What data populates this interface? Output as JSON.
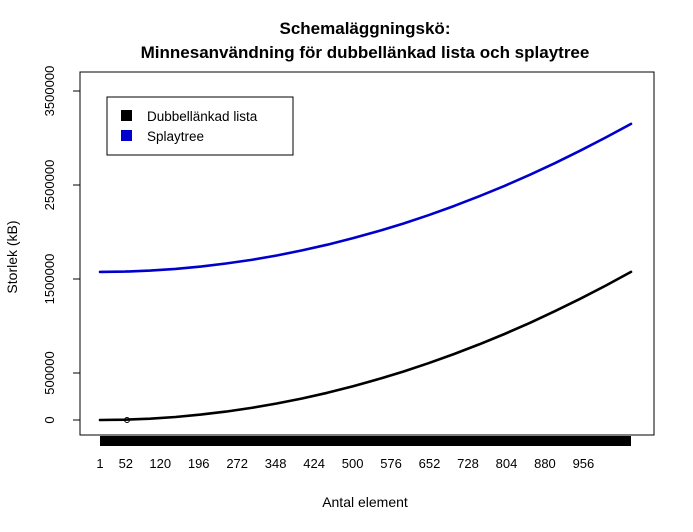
{
  "chart_data": {
    "type": "line",
    "title": "Schemaläggningskö:",
    "subtitle": "Minnesanvändning för dubbellänkad lista och splaytree",
    "xlabel": "Antal element",
    "ylabel": "Storlek (kB)",
    "x_ticks": [
      "1",
      "52",
      "120",
      "196",
      "272",
      "348",
      "424",
      "500",
      "576",
      "652",
      "728",
      "804",
      "880",
      "956"
    ],
    "y_ticks": [
      "0",
      "500000",
      "1500000",
      "2500000",
      "3500000"
    ],
    "xlim": [
      1,
      1050
    ],
    "ylim": [
      0,
      3500000
    ],
    "grid": false,
    "legend_position": "top-left",
    "series": [
      {
        "name": "Dubbellänkad lista",
        "color": "#000000",
        "x": [
          1,
          50,
          100,
          150,
          200,
          250,
          300,
          350,
          400,
          450,
          500,
          550,
          600,
          650,
          700,
          750,
          800,
          850,
          900,
          950,
          1000,
          1050
        ],
        "y": [
          0,
          3500,
          14300,
          32200,
          57200,
          89400,
          128700,
          175200,
          228800,
          289600,
          357500,
          432600,
          514800,
          604200,
          700700,
          804400,
          915200,
          1033200,
          1158300,
          1290600,
          1430000,
          1575000
        ]
      },
      {
        "name": "Splaytree",
        "color": "#0000cc",
        "x": [
          1,
          50,
          100,
          150,
          200,
          250,
          300,
          350,
          400,
          450,
          500,
          550,
          600,
          650,
          700,
          750,
          800,
          850,
          900,
          950,
          1000,
          1050
        ],
        "y": [
          1575000,
          1578500,
          1589300,
          1607200,
          1632200,
          1664400,
          1703700,
          1750200,
          1803800,
          1864600,
          1932500,
          2007600,
          2089800,
          2179200,
          2275700,
          2379400,
          2490200,
          2608200,
          2733300,
          2865600,
          3005000,
          3150000
        ]
      }
    ]
  }
}
